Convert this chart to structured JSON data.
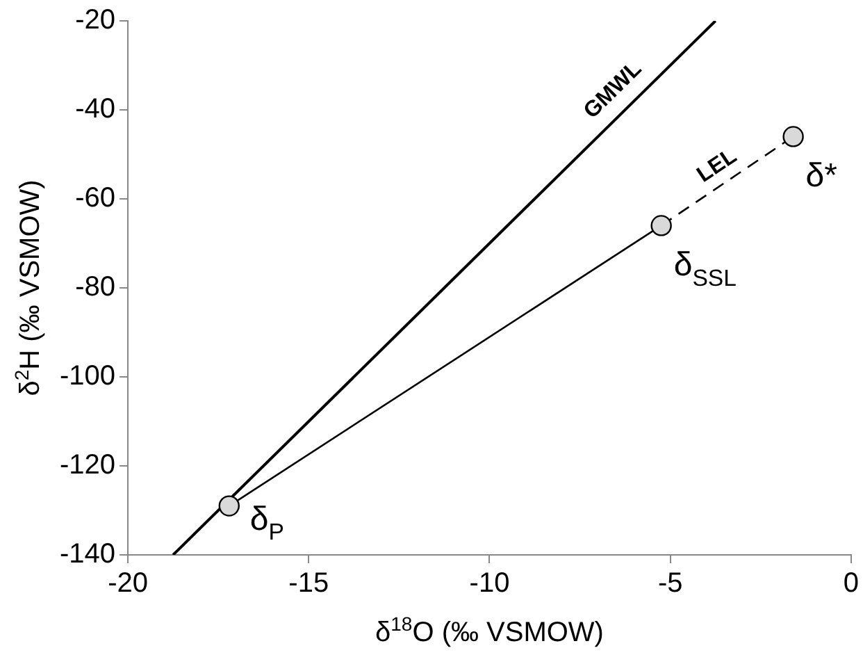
{
  "chart_data": {
    "type": "scatter",
    "xlabel": "δ$^{18}$O (‰ VSMOW)",
    "ylabel": "δ$^{2}$H (‰ VSMOW)",
    "xlim": [
      -20,
      0
    ],
    "xticks": [
      -20,
      -15,
      -10,
      -5,
      0
    ],
    "ylim": [
      -140,
      -20
    ],
    "yticks": [
      -140,
      -120,
      -100,
      -80,
      -60,
      -40,
      -20
    ],
    "series": [
      {
        "name": "GMWL",
        "type": "line",
        "color": "#000000",
        "x": [
          -18.75,
          -3.75
        ],
        "values": [
          -140,
          -20
        ],
        "line_style": "solid",
        "marker": "none"
      },
      {
        "type": "line",
        "color": "#000000",
        "x": [
          -17.2,
          -5.25
        ],
        "values": [
          -129,
          -66
        ],
        "line_style": "solid",
        "marker": "none"
      },
      {
        "name": "LEL",
        "type": "line",
        "color": "#000000",
        "x": [
          -5.25,
          -1.6
        ],
        "values": [
          -66,
          -46
        ],
        "line_style": "dashed",
        "marker": "none"
      },
      {
        "type": "scatter",
        "color": "#d9d9d9",
        "x": [
          -17.2,
          -5.25,
          -1.6
        ],
        "values": [
          -129,
          -66,
          -46
        ],
        "marker": "circle"
      }
    ],
    "annotations": [
      {
        "text": "δ$_{P}$",
        "x": -17.2,
        "y": -129
      },
      {
        "text": "δ$_{SSL}$",
        "x": -5.25,
        "y": -66
      },
      {
        "text": "δ*",
        "x": -1.6,
        "y": -46
      }
    ]
  }
}
